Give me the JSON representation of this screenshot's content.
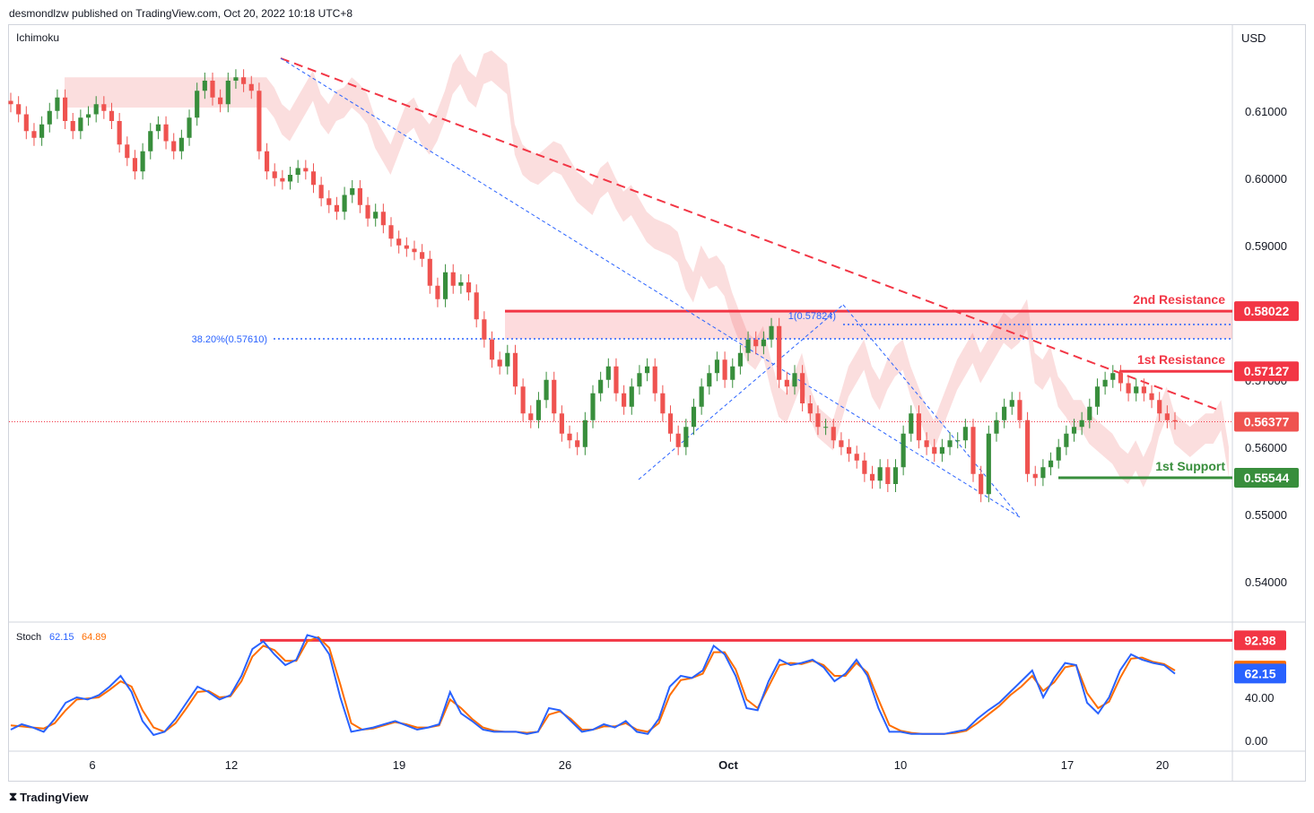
{
  "header": {
    "publisher": "desmondlzw published on TradingView.com, Oct 20, 2022 10:18 UTC+8"
  },
  "footer": {
    "brand": "TradingView",
    "logo": "tradingview-logo-icon"
  },
  "colors": {
    "up": "#26a69a",
    "upBody": "#388e3c",
    "down": "#ef5350",
    "cloud": "#f8c8c8",
    "cloudGreen": "#c8e6c9",
    "resistance": "#f23645",
    "support": "#388e3c",
    "fib": "#2962ff",
    "stochK": "#2962ff",
    "stochD": "#ff6d00"
  },
  "chart_data": {
    "type": "candlestick",
    "currency": "USD",
    "indicator_main": "Ichimoku",
    "price_axis": {
      "ticks": [
        "0.61000",
        "0.60000",
        "0.59000",
        "0.57000",
        "0.56000",
        "0.55000",
        "0.54000"
      ],
      "range": [
        0.5345,
        0.6225
      ]
    },
    "time_axis": {
      "labels": [
        "6",
        "12",
        "19",
        "26",
        "Oct",
        "10",
        "17",
        "20"
      ]
    },
    "levels": [
      {
        "name": "2nd Resistance",
        "value": "0.58022",
        "color": "#f23645"
      },
      {
        "name": "1st Resistance",
        "value": "0.57127",
        "color": "#f23645"
      },
      {
        "name": "1st Support",
        "value": "0.55544",
        "color": "#388e3c"
      }
    ],
    "current_price": "0.56377",
    "fib": [
      {
        "label": "38.20%(0.57610)",
        "value": 0.5761
      },
      {
        "label": "1(0.57824)",
        "value": 0.57824
      }
    ],
    "stoch": {
      "label": "Stoch",
      "k": "62.15",
      "d": "64.89",
      "axis_ticks": [
        "40.00",
        "0.00"
      ],
      "markers": [
        "92.98",
        "64.89",
        "62.15"
      ],
      "level": 92.98
    },
    "closes": [
      0.611,
      0.6095,
      0.607,
      0.606,
      0.608,
      0.61,
      0.612,
      0.6085,
      0.607,
      0.609,
      0.6095,
      0.611,
      0.61,
      0.6085,
      0.605,
      0.603,
      0.601,
      0.604,
      0.607,
      0.608,
      0.6055,
      0.604,
      0.606,
      0.609,
      0.613,
      0.6145,
      0.612,
      0.611,
      0.6145,
      0.615,
      0.614,
      0.613,
      0.604,
      0.601,
      0.6,
      0.5995,
      0.6005,
      0.6015,
      0.601,
      0.599,
      0.597,
      0.596,
      0.595,
      0.5975,
      0.5985,
      0.596,
      0.594,
      0.595,
      0.593,
      0.591,
      0.59,
      0.5895,
      0.589,
      0.588,
      0.584,
      0.582,
      0.586,
      0.584,
      0.5845,
      0.583,
      0.579,
      0.576,
      0.573,
      0.572,
      0.574,
      0.569,
      0.565,
      0.564,
      0.567,
      0.57,
      0.565,
      0.562,
      0.561,
      0.56,
      0.564,
      0.568,
      0.57,
      0.572,
      0.568,
      0.566,
      0.569,
      0.571,
      0.572,
      0.568,
      0.565,
      0.562,
      0.56,
      0.563,
      0.566,
      0.569,
      0.571,
      0.573,
      0.57,
      0.572,
      0.574,
      0.576,
      0.575,
      0.576,
      0.578,
      0.57,
      0.569,
      0.571,
      0.5665,
      0.565,
      0.563,
      0.563,
      0.561,
      0.56,
      0.559,
      0.558,
      0.556,
      0.555,
      0.557,
      0.5545,
      0.557,
      0.562,
      0.565,
      0.561,
      0.56,
      0.559,
      0.56,
      0.561,
      0.561,
      0.563,
      0.556,
      0.553,
      0.562,
      0.564,
      0.566,
      0.567,
      0.564,
      0.556,
      0.5554,
      0.557,
      0.558,
      0.56,
      0.562,
      0.563,
      0.564,
      0.566,
      0.569,
      0.57,
      0.571,
      0.5695,
      0.568,
      0.569,
      0.568,
      0.567,
      0.565,
      0.564,
      0.5638
    ],
    "stoch_k": [
      10,
      15,
      12,
      8,
      20,
      35,
      40,
      38,
      42,
      50,
      60,
      45,
      18,
      5,
      8,
      20,
      35,
      50,
      45,
      38,
      42,
      60,
      85,
      92,
      80,
      70,
      75,
      98,
      95,
      80,
      40,
      8,
      10,
      12,
      15,
      18,
      14,
      10,
      12,
      15,
      45,
      25,
      18,
      10,
      8,
      8,
      8,
      6,
      8,
      30,
      28,
      18,
      8,
      10,
      15,
      12,
      18,
      8,
      6,
      20,
      50,
      60,
      58,
      65,
      88,
      80,
      60,
      30,
      28,
      55,
      75,
      70,
      72,
      75,
      68,
      55,
      62,
      75,
      60,
      30,
      8,
      8,
      6,
      6,
      6,
      6,
      8,
      10,
      20,
      28,
      35,
      45,
      55,
      65,
      40,
      58,
      72,
      70,
      35,
      25,
      40,
      65,
      80,
      75,
      72,
      70,
      62
    ],
    "stoch_d": [
      14,
      13,
      12,
      11,
      16,
      28,
      38,
      39,
      40,
      47,
      55,
      50,
      28,
      12,
      8,
      16,
      30,
      45,
      46,
      40,
      41,
      55,
      78,
      88,
      84,
      74,
      74,
      92,
      96,
      86,
      52,
      16,
      10,
      11,
      14,
      17,
      15,
      12,
      12,
      14,
      38,
      30,
      20,
      12,
      9,
      8,
      8,
      7,
      8,
      24,
      27,
      20,
      10,
      10,
      13,
      13,
      16,
      10,
      8,
      16,
      42,
      56,
      58,
      62,
      82,
      82,
      66,
      38,
      30,
      50,
      70,
      72,
      71,
      74,
      70,
      60,
      60,
      72,
      63,
      38,
      14,
      9,
      7,
      6,
      6,
      6,
      7,
      9,
      16,
      24,
      32,
      42,
      50,
      60,
      46,
      54,
      68,
      70,
      44,
      30,
      36,
      58,
      76,
      77,
      73,
      71,
      65
    ]
  }
}
